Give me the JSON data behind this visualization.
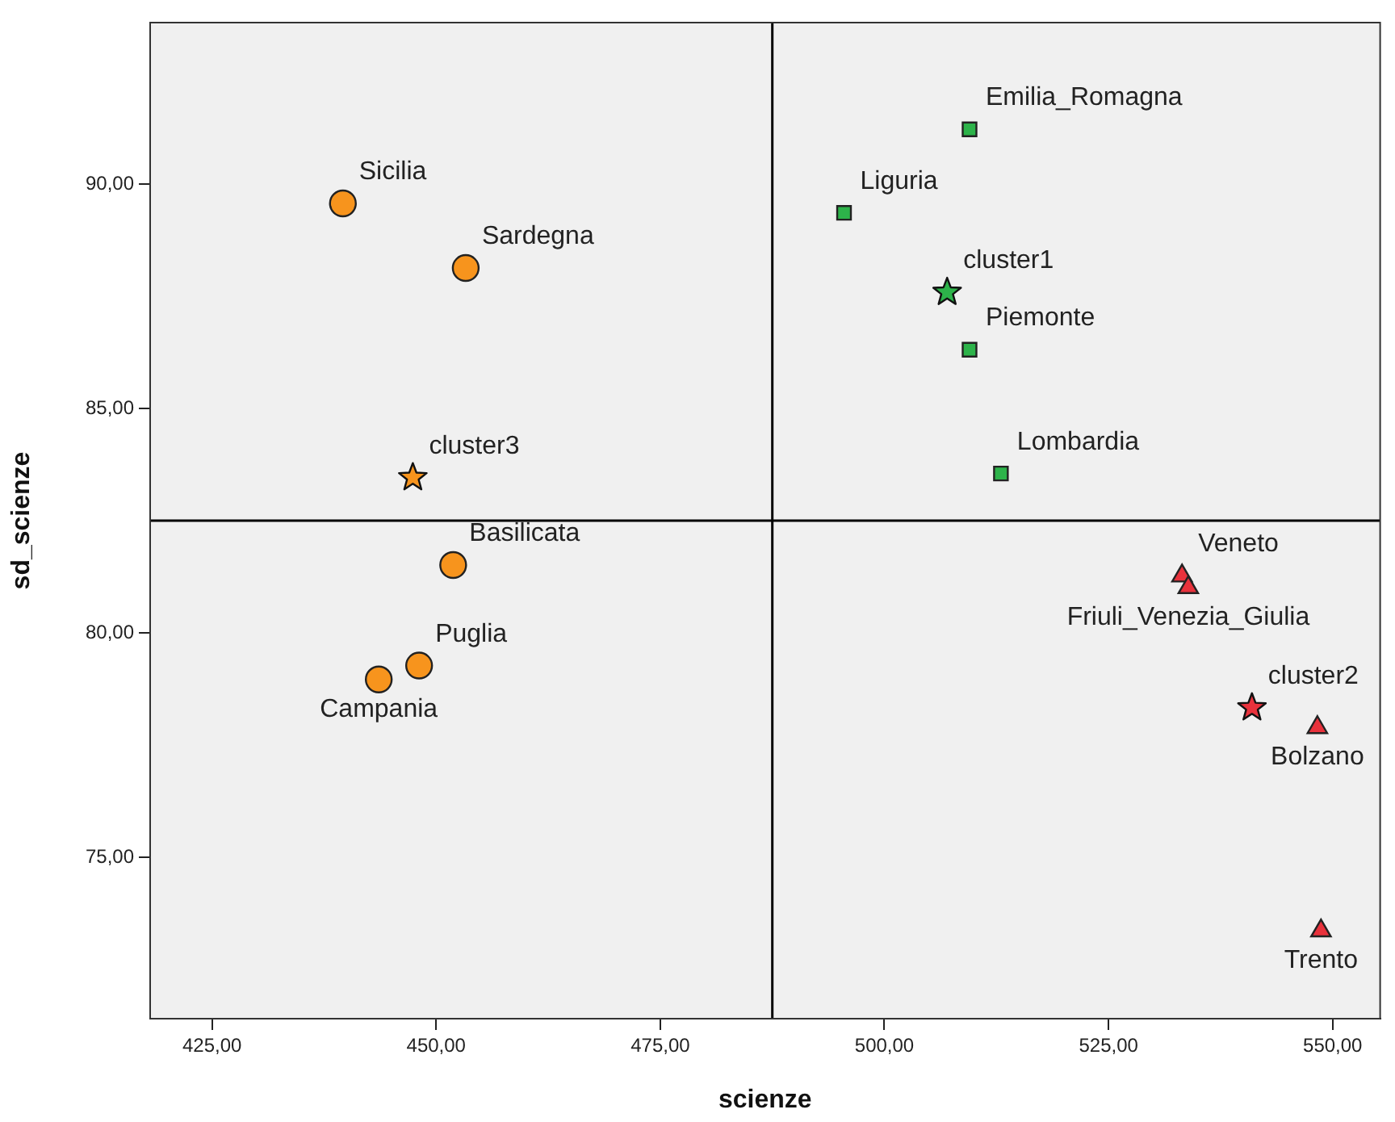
{
  "chart_data": {
    "type": "scatter",
    "xlabel": "scienze",
    "ylabel": "sd_scienze",
    "xlim": [
      418.1,
      555.3
    ],
    "ylim": [
      71.4,
      93.6
    ],
    "xticks": [
      {
        "value": 425,
        "label": "425,00"
      },
      {
        "value": 450,
        "label": "450,00"
      },
      {
        "value": 475,
        "label": "475,00"
      },
      {
        "value": 500,
        "label": "500,00"
      },
      {
        "value": 525,
        "label": "525,00"
      },
      {
        "value": 550,
        "label": "550,00"
      }
    ],
    "yticks": [
      {
        "value": 75,
        "label": "75,00"
      },
      {
        "value": 80,
        "label": "80,00"
      },
      {
        "value": 85,
        "label": "85,00"
      },
      {
        "value": 90,
        "label": "90,00"
      }
    ],
    "grid": false,
    "legend": false,
    "series": [
      {
        "color": "#2db34a",
        "marker": "square",
        "x": [
          509.5,
          495.5,
          509.5,
          513.0
        ],
        "values": [
          91.22,
          89.36,
          86.31,
          83.55
        ]
      },
      {
        "color": "#e8323c",
        "marker": "triangle",
        "x": [
          533.2,
          533.9,
          548.3,
          548.7
        ],
        "values": [
          81.27,
          81.01,
          77.89,
          73.36
        ]
      },
      {
        "color": "#f7941d",
        "marker": "circle",
        "x": [
          439.6,
          453.3,
          451.9,
          448.1,
          443.6
        ],
        "values": [
          89.57,
          88.13,
          81.51,
          79.27,
          78.96
        ]
      },
      {
        "color": "#2db34a",
        "marker": "star",
        "x": [
          507.0
        ],
        "values": [
          87.59
        ]
      },
      {
        "color": "#e8323c",
        "marker": "star",
        "x": [
          541.0
        ],
        "values": [
          78.33
        ]
      },
      {
        "color": "#f7941d",
        "marker": "star",
        "x": [
          447.4
        ],
        "values": [
          83.46
        ]
      }
    ],
    "ref_lines": [
      {
        "axis": "x",
        "value": 487.5,
        "color": "#000000"
      },
      {
        "axis": "y",
        "value": 82.5,
        "color": "#000000"
      }
    ],
    "annotations": [
      {
        "text": "Emilia_Romagna",
        "x": 509.5,
        "y": 91.22
      },
      {
        "text": "Liguria",
        "x": 495.5,
        "y": 89.36
      },
      {
        "text": "cluster1",
        "x": 507.0,
        "y": 87.59
      },
      {
        "text": "Piemonte",
        "x": 509.5,
        "y": 86.31
      },
      {
        "text": "Lombardia",
        "x": 513.0,
        "y": 83.55
      },
      {
        "text": "Veneto",
        "x": 533.2,
        "y": 81.27
      },
      {
        "text": "Friuli_Venezia_Giulia",
        "x": 533.9,
        "y": 81.01
      },
      {
        "text": "cluster2",
        "x": 541.0,
        "y": 78.33
      },
      {
        "text": "Bolzano",
        "x": 548.3,
        "y": 77.89
      },
      {
        "text": "Trento",
        "x": 548.7,
        "y": 73.36
      },
      {
        "text": "Sicilia",
        "x": 439.6,
        "y": 89.57
      },
      {
        "text": "Sardegna",
        "x": 453.3,
        "y": 88.13
      },
      {
        "text": "cluster3",
        "x": 447.4,
        "y": 83.46
      },
      {
        "text": "Basilicata",
        "x": 451.9,
        "y": 81.51
      },
      {
        "text": "Puglia",
        "x": 448.1,
        "y": 79.27
      },
      {
        "text": "Campania",
        "x": 443.6,
        "y": 78.96
      }
    ]
  }
}
